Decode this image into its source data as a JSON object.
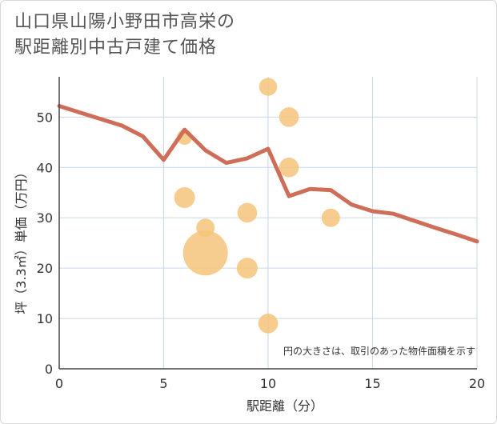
{
  "title_line1": "山口県山陽小野田市高栄の",
  "title_line2": "駅距離別中古戸建て価格",
  "chart_data": {
    "type": "scatter+line",
    "xlabel": "駅距離（分）",
    "ylabel": "坪（3.3㎡）単価（万円）",
    "xlim": [
      0,
      20
    ],
    "ylim": [
      0,
      58
    ],
    "xticks": [
      0,
      5,
      10,
      15,
      20
    ],
    "yticks": [
      0,
      10,
      20,
      30,
      40,
      50
    ],
    "grid": true,
    "note": "円の大きさは、取引のあった物件面積を示す",
    "bubbles": [
      {
        "x": 6,
        "y": 46,
        "size": 1
      },
      {
        "x": 6,
        "y": 34,
        "size": 3
      },
      {
        "x": 7,
        "y": 28,
        "size": 2
      },
      {
        "x": 7,
        "y": 23,
        "size": 25
      },
      {
        "x": 9,
        "y": 31,
        "size": 2.5
      },
      {
        "x": 9,
        "y": 20,
        "size": 3
      },
      {
        "x": 10,
        "y": 56,
        "size": 1.8
      },
      {
        "x": 10,
        "y": 9,
        "size": 2.5
      },
      {
        "x": 11,
        "y": 50,
        "size": 2.5
      },
      {
        "x": 11,
        "y": 40,
        "size": 2.5
      },
      {
        "x": 13,
        "y": 30,
        "size": 2
      }
    ],
    "line": {
      "x": [
        0,
        1,
        2,
        3,
        4,
        5,
        6,
        7,
        8,
        9,
        10,
        11,
        12,
        13,
        14,
        15,
        16,
        17,
        18,
        19,
        20
      ],
      "y": [
        52.2,
        50.9,
        49.6,
        48.3,
        46.2,
        41.5,
        47.5,
        43.4,
        40.9,
        41.8,
        43.7,
        34.3,
        35.7,
        35.5,
        32.6,
        31.3,
        30.8,
        29.4,
        28.0,
        26.7,
        25.3
      ]
    },
    "colors": {
      "bubble": "#f5c47a",
      "line": "#cf6e58",
      "grid": "#c9d8e6",
      "axis": "#444444"
    }
  }
}
